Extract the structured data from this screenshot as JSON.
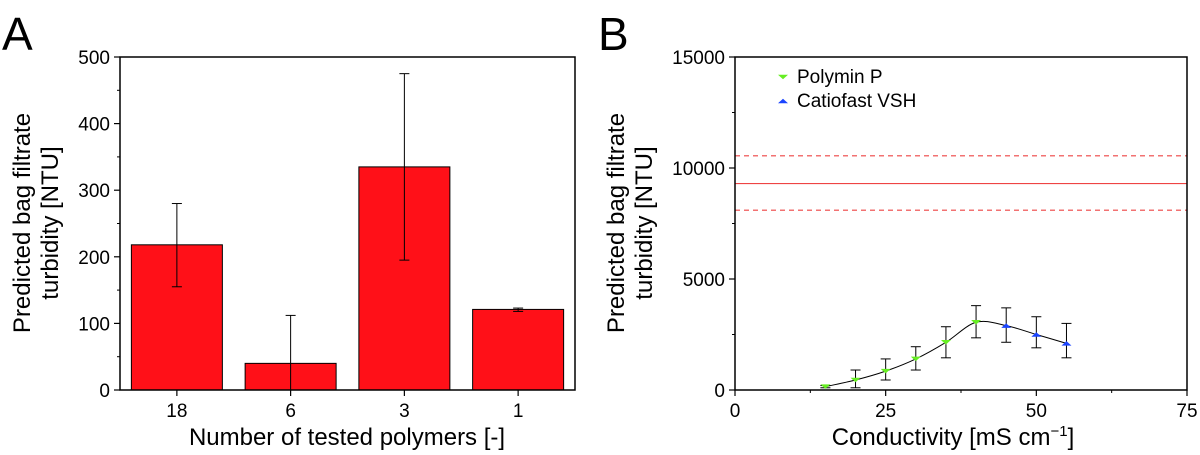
{
  "chart_data": [
    {
      "panel": "A",
      "type": "bar",
      "categories": [
        "18",
        "6",
        "3",
        "1"
      ],
      "values": [
        218,
        40,
        335,
        121
      ],
      "errors_low": [
        155,
        0,
        195,
        118
      ],
      "errors_high": [
        280,
        112,
        475,
        123
      ],
      "xlabel": "Number of tested polymers [-]",
      "ylabel_lines": [
        "Predicted bag filtrate",
        "turbidity [NTU]"
      ],
      "ylim": [
        0,
        500
      ],
      "yticks": [
        "0",
        "100",
        "200",
        "300",
        "400",
        "500"
      ],
      "bar_color": "#ff1018",
      "grid": false
    },
    {
      "panel": "B",
      "type": "scatter",
      "xlabel": "Conductivity [mS cm",
      "xlabel_sup": "−1",
      "xlabel_end": "]",
      "ylabel_lines": [
        "Predicted bag filtrate",
        "turbidity [NTU]"
      ],
      "xlim": [
        0,
        75
      ],
      "ylim": [
        0,
        15000
      ],
      "xticks": [
        "0",
        "25",
        "50",
        "75"
      ],
      "yticks": [
        "0",
        "5000",
        "10000",
        "15000"
      ],
      "legend_position": "top-left",
      "series": [
        {
          "name": "Polymin P",
          "marker": "triangle-down",
          "color": "#66ee22",
          "x": [
            15,
            20,
            25,
            30,
            35,
            40
          ],
          "y": [
            150,
            450,
            850,
            1400,
            2150,
            3050
          ],
          "err_low": [
            100,
            100,
            450,
            900,
            1450,
            2350
          ],
          "err_high": [
            200,
            900,
            1400,
            1950,
            2850,
            3800
          ]
        },
        {
          "name": "Catiofast VSH",
          "marker": "triangle-up",
          "color": "#1a44ff",
          "x": [
            45,
            50,
            55
          ],
          "y": [
            2900,
            2500,
            2100
          ],
          "err_low": [
            2150,
            1900,
            1450
          ],
          "err_high": [
            3700,
            3300,
            3000
          ]
        }
      ],
      "reference_lines": [
        {
          "y": 9300,
          "style": "solid",
          "color": "#ee4444"
        },
        {
          "y": 10550,
          "style": "dashed",
          "color": "#ee4444"
        },
        {
          "y": 8100,
          "style": "dashed",
          "color": "#ee4444"
        }
      ],
      "fit_curve": {
        "x": [
          15,
          20,
          25,
          30,
          35,
          40,
          45,
          50,
          55
        ],
        "y": [
          150,
          450,
          850,
          1400,
          2150,
          3050,
          2900,
          2500,
          2100
        ],
        "color": "#000000"
      },
      "grid": false
    }
  ]
}
